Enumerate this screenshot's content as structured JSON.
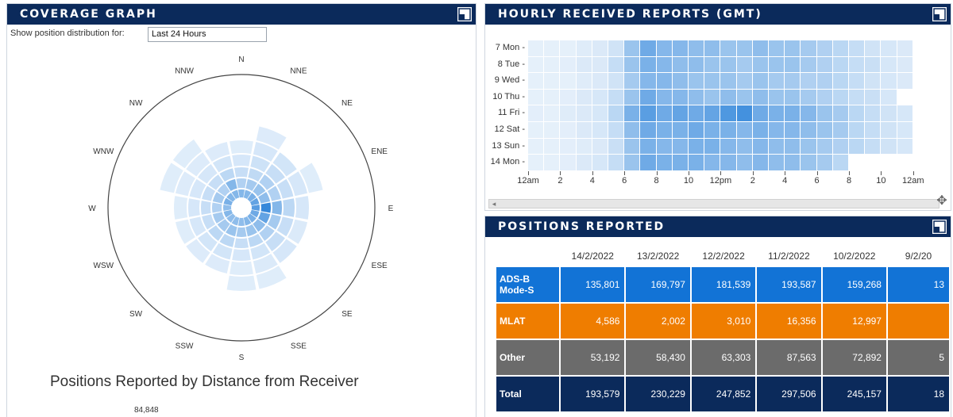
{
  "coverage": {
    "title": "COVERAGE GRAPH",
    "control_label": "Show position distribution for:",
    "period_value": "Last 24 Hours",
    "directions": [
      "N",
      "NNE",
      "NE",
      "ENE",
      "E",
      "ESE",
      "SE",
      "SSE",
      "S",
      "SSW",
      "SW",
      "WSW",
      "W",
      "WNW",
      "NW",
      "NNW"
    ],
    "ring_levels": [
      [
        0.45,
        0.25,
        0.15,
        0.08,
        0.04,
        0.0
      ],
      [
        0.45,
        0.3,
        0.18,
        0.12,
        0.08,
        0.05
      ],
      [
        0.5,
        0.35,
        0.25,
        0.15,
        0.1,
        0.0
      ],
      [
        0.6,
        0.4,
        0.25,
        0.15,
        0.08,
        0.04
      ],
      [
        0.65,
        0.8,
        0.45,
        0.2,
        0.08,
        0.0
      ],
      [
        0.55,
        0.6,
        0.3,
        0.15,
        0.06,
        0.0
      ],
      [
        0.5,
        0.4,
        0.25,
        0.15,
        0.08,
        0.0
      ],
      [
        0.45,
        0.35,
        0.2,
        0.1,
        0.06,
        0.04
      ],
      [
        0.4,
        0.3,
        0.15,
        0.08,
        0.04,
        0.04
      ],
      [
        0.4,
        0.35,
        0.2,
        0.1,
        0.05,
        0.0
      ],
      [
        0.4,
        0.3,
        0.2,
        0.1,
        0.05,
        0.0
      ],
      [
        0.45,
        0.3,
        0.15,
        0.08,
        0.04,
        0.0
      ],
      [
        0.4,
        0.25,
        0.15,
        0.08,
        0.04,
        0.0
      ],
      [
        0.5,
        0.3,
        0.15,
        0.08,
        0.05,
        0.04
      ],
      [
        0.45,
        0.25,
        0.15,
        0.08,
        0.05,
        0.04
      ],
      [
        0.45,
        0.45,
        0.2,
        0.1,
        0.05,
        0.0
      ]
    ],
    "chart_title": "Positions Reported by Distance from Receiver",
    "chart_value": "84,848"
  },
  "hourly": {
    "title": "HOURLY RECEIVED REPORTS (GMT)",
    "days": [
      "7 Mon",
      "8 Tue",
      "9 Wed",
      "10 Thu",
      "11 Fri",
      "12 Sat",
      "13 Sun",
      "14 Mon"
    ],
    "hour_ticks": [
      "12am",
      "2",
      "4",
      "6",
      "8",
      "10",
      "12pm",
      "2",
      "4",
      "6",
      "8",
      "10",
      "12am"
    ],
    "intensity": [
      [
        0.05,
        0.05,
        0.05,
        0.08,
        0.1,
        0.15,
        0.4,
        0.6,
        0.5,
        0.5,
        0.45,
        0.45,
        0.4,
        0.4,
        0.45,
        0.4,
        0.4,
        0.35,
        0.3,
        0.25,
        0.2,
        0.15,
        0.12,
        0.1
      ],
      [
        0.05,
        0.05,
        0.06,
        0.1,
        0.1,
        0.2,
        0.4,
        0.55,
        0.5,
        0.45,
        0.45,
        0.4,
        0.4,
        0.35,
        0.4,
        0.4,
        0.4,
        0.35,
        0.3,
        0.25,
        0.2,
        0.18,
        0.12,
        0.1
      ],
      [
        0.05,
        0.05,
        0.05,
        0.08,
        0.1,
        0.15,
        0.35,
        0.5,
        0.5,
        0.45,
        0.4,
        0.4,
        0.4,
        0.35,
        0.4,
        0.35,
        0.35,
        0.3,
        0.3,
        0.25,
        0.2,
        0.15,
        0.12,
        0.1
      ],
      [
        0.05,
        0.05,
        0.06,
        0.1,
        0.12,
        0.2,
        0.4,
        0.6,
        0.5,
        0.5,
        0.45,
        0.4,
        0.45,
        0.4,
        0.45,
        0.4,
        0.4,
        0.35,
        0.3,
        0.25,
        0.2,
        0.18,
        0.12,
        null
      ],
      [
        0.06,
        0.05,
        0.08,
        0.1,
        0.12,
        0.25,
        0.55,
        0.7,
        0.6,
        0.65,
        0.6,
        0.65,
        0.75,
        0.8,
        0.6,
        0.55,
        0.55,
        0.5,
        0.4,
        0.35,
        0.25,
        0.2,
        0.15,
        0.12
      ],
      [
        0.05,
        0.05,
        0.06,
        0.1,
        0.12,
        0.2,
        0.45,
        0.6,
        0.55,
        0.55,
        0.6,
        0.55,
        0.55,
        0.5,
        0.55,
        0.5,
        0.5,
        0.45,
        0.4,
        0.35,
        0.25,
        0.2,
        0.15,
        0.12
      ],
      [
        0.05,
        0.05,
        0.06,
        0.08,
        0.1,
        0.18,
        0.4,
        0.55,
        0.5,
        0.5,
        0.55,
        0.55,
        0.5,
        0.45,
        0.5,
        0.45,
        0.45,
        0.4,
        0.35,
        0.3,
        0.25,
        0.2,
        0.15,
        0.12
      ],
      [
        0.05,
        0.05,
        0.06,
        0.1,
        0.12,
        0.2,
        0.4,
        0.6,
        0.55,
        0.55,
        0.55,
        0.5,
        0.5,
        0.45,
        0.5,
        0.45,
        0.45,
        0.4,
        0.35,
        0.25,
        null,
        null,
        null,
        null
      ]
    ]
  },
  "positions": {
    "title": "POSITIONS REPORTED",
    "dates": [
      "14/2/2022",
      "13/2/2022",
      "12/2/2022",
      "11/2/2022",
      "10/2/2022",
      "9/2/20"
    ],
    "rows": [
      {
        "label": "ADS-B\nMode-S",
        "values": [
          "135,801",
          "169,797",
          "181,539",
          "193,587",
          "159,268",
          "13"
        ]
      },
      {
        "label": "MLAT",
        "values": [
          "4,586",
          "2,002",
          "3,010",
          "16,356",
          "12,997",
          ""
        ]
      },
      {
        "label": "Other",
        "values": [
          "53,192",
          "58,430",
          "63,303",
          "87,563",
          "72,892",
          "5"
        ]
      },
      {
        "label": "Total",
        "values": [
          "193,579",
          "230,229",
          "247,852",
          "297,506",
          "245,157",
          "18"
        ]
      }
    ]
  }
}
